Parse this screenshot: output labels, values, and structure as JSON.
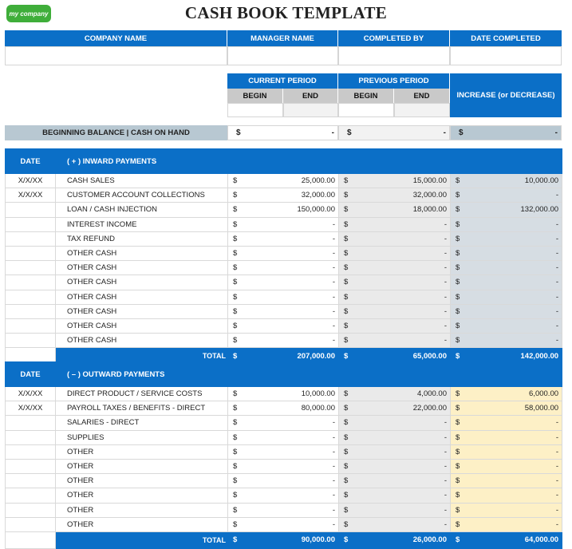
{
  "logo": "my company",
  "title": "CASH BOOK TEMPLATE",
  "info_headers": [
    "COMPANY NAME",
    "MANAGER NAME",
    "COMPLETED BY",
    "DATE COMPLETED"
  ],
  "period": {
    "current": "CURRENT PERIOD",
    "previous": "PREVIOUS PERIOD",
    "begin": "BEGIN",
    "end": "END",
    "increase": "INCREASE (or DECREASE)"
  },
  "balance": {
    "label": "BEGINNING BALANCE | CASH ON HAND",
    "currency": "$",
    "current": "-",
    "previous": "-",
    "change": "-"
  },
  "inward": {
    "date_header": "DATE",
    "title": "( + )  INWARD PAYMENTS",
    "rows": [
      {
        "date": "X/X/XX",
        "desc": "CASH SALES",
        "cur": "25,000.00",
        "prev": "15,000.00",
        "chg": "10,000.00"
      },
      {
        "date": "X/X/XX",
        "desc": "CUSTOMER ACCOUNT COLLECTIONS",
        "cur": "32,000.00",
        "prev": "32,000.00",
        "chg": "-"
      },
      {
        "date": "",
        "desc": "LOAN / CASH INJECTION",
        "cur": "150,000.00",
        "prev": "18,000.00",
        "chg": "132,000.00"
      },
      {
        "date": "",
        "desc": "INTEREST INCOME",
        "cur": "-",
        "prev": "-",
        "chg": "-"
      },
      {
        "date": "",
        "desc": "TAX REFUND",
        "cur": "-",
        "prev": "-",
        "chg": "-"
      },
      {
        "date": "",
        "desc": "OTHER CASH",
        "cur": "-",
        "prev": "-",
        "chg": "-"
      },
      {
        "date": "",
        "desc": "OTHER CASH",
        "cur": "-",
        "prev": "-",
        "chg": "-"
      },
      {
        "date": "",
        "desc": "OTHER CASH",
        "cur": "-",
        "prev": "-",
        "chg": "-"
      },
      {
        "date": "",
        "desc": "OTHER CASH",
        "cur": "-",
        "prev": "-",
        "chg": "-"
      },
      {
        "date": "",
        "desc": "OTHER CASH",
        "cur": "-",
        "prev": "-",
        "chg": "-"
      },
      {
        "date": "",
        "desc": "OTHER CASH",
        "cur": "-",
        "prev": "-",
        "chg": "-"
      },
      {
        "date": "",
        "desc": "OTHER CASH",
        "cur": "-",
        "prev": "-",
        "chg": "-"
      }
    ],
    "total": {
      "label": "TOTAL",
      "cur": "207,000.00",
      "prev": "65,000.00",
      "chg": "142,000.00"
    }
  },
  "outward": {
    "date_header": "DATE",
    "title": "( – )  OUTWARD PAYMENTS",
    "rows": [
      {
        "date": "X/X/XX",
        "desc": "DIRECT PRODUCT / SERVICE COSTS",
        "cur": "10,000.00",
        "prev": "4,000.00",
        "chg": "6,000.00"
      },
      {
        "date": "X/X/XX",
        "desc": "PAYROLL TAXES / BENEFITS - DIRECT",
        "cur": "80,000.00",
        "prev": "22,000.00",
        "chg": "58,000.00"
      },
      {
        "date": "",
        "desc": "SALARIES - DIRECT",
        "cur": "-",
        "prev": "-",
        "chg": "-"
      },
      {
        "date": "",
        "desc": "SUPPLIES",
        "cur": "-",
        "prev": "-",
        "chg": "-"
      },
      {
        "date": "",
        "desc": "OTHER",
        "cur": "-",
        "prev": "-",
        "chg": "-"
      },
      {
        "date": "",
        "desc": "OTHER",
        "cur": "-",
        "prev": "-",
        "chg": "-"
      },
      {
        "date": "",
        "desc": "OTHER",
        "cur": "-",
        "prev": "-",
        "chg": "-"
      },
      {
        "date": "",
        "desc": "OTHER",
        "cur": "-",
        "prev": "-",
        "chg": "-"
      },
      {
        "date": "",
        "desc": "OTHER",
        "cur": "-",
        "prev": "-",
        "chg": "-"
      },
      {
        "date": "",
        "desc": "OTHER",
        "cur": "-",
        "prev": "-",
        "chg": "-"
      }
    ],
    "total": {
      "label": "TOTAL",
      "cur": "90,000.00",
      "prev": "26,000.00",
      "chg": "64,000.00"
    }
  }
}
